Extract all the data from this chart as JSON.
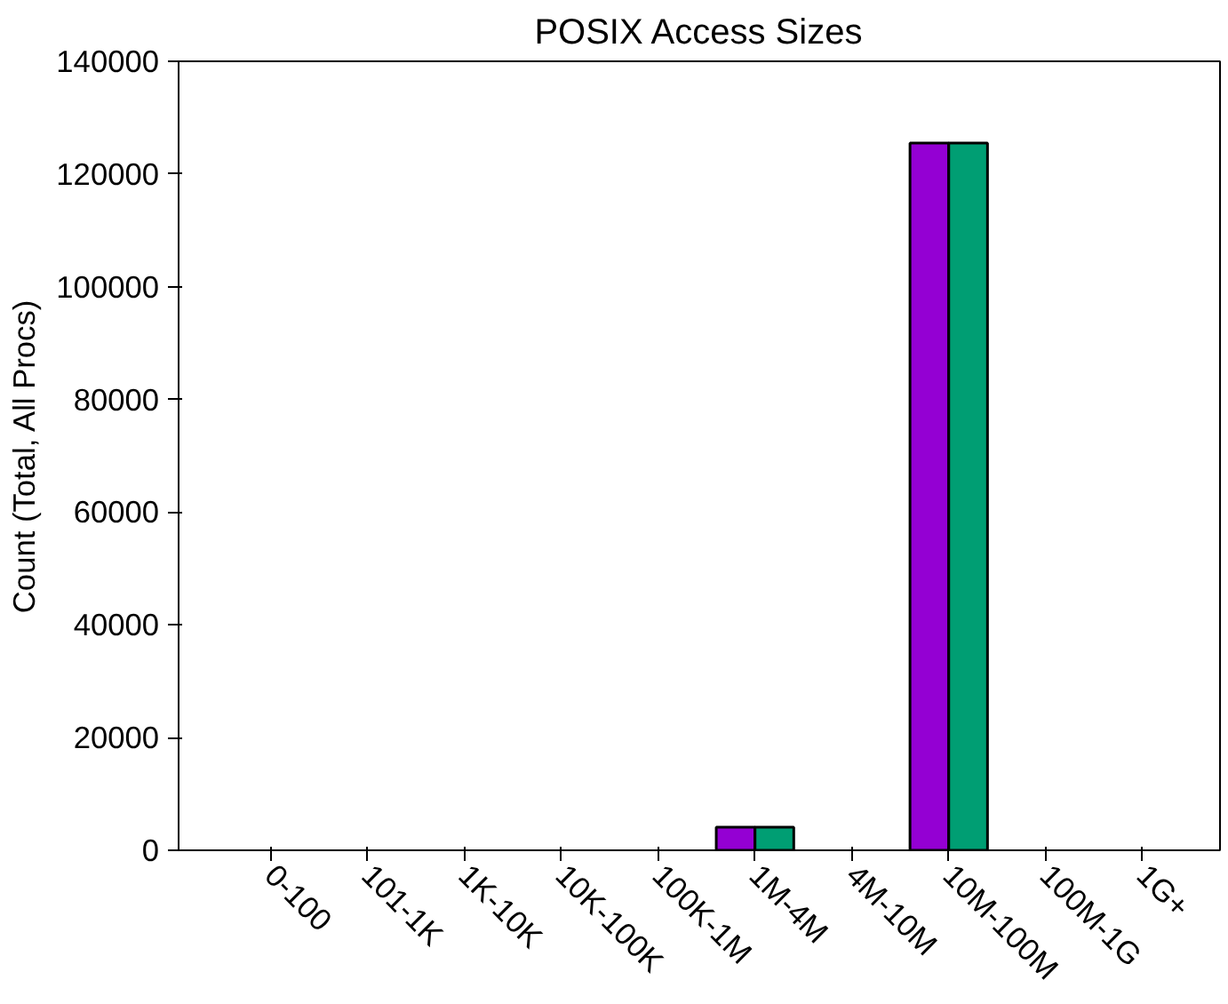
{
  "chart_data": {
    "type": "bar",
    "title": "POSIX Access Sizes",
    "ylabel": "Count (Total, All Procs)",
    "categories": [
      "0-100",
      "101-1K",
      "1K-10K",
      "10K-100K",
      "100K-1M",
      "1M-4M",
      "4M-10M",
      "10M-100M",
      "100M-1G",
      "1G+"
    ],
    "series": [
      {
        "color": "#9400d3",
        "values": [
          null,
          null,
          null,
          null,
          null,
          4100,
          null,
          125500,
          null,
          null
        ]
      },
      {
        "color": "#009e73",
        "values": [
          null,
          null,
          null,
          null,
          null,
          4100,
          null,
          125500,
          null,
          null
        ]
      }
    ],
    "ylim": [
      0,
      140000
    ],
    "yticks": [
      0,
      20000,
      40000,
      60000,
      80000,
      100000,
      120000,
      140000
    ],
    "grid": false
  }
}
